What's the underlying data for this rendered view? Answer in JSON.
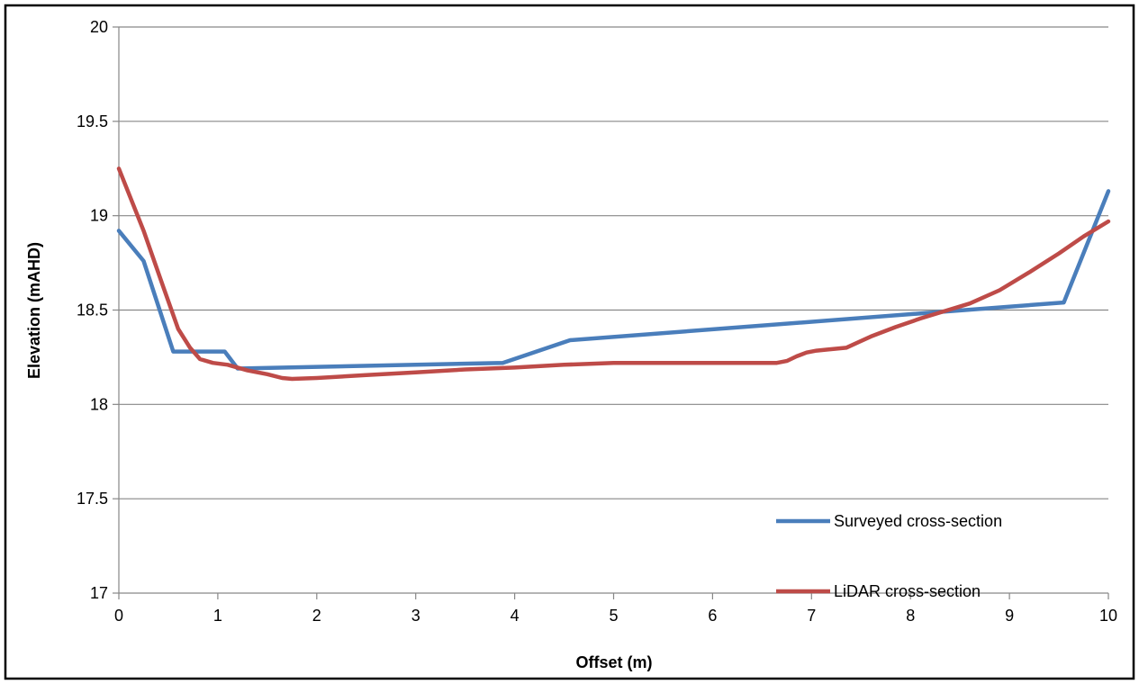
{
  "chart_data": {
    "type": "line",
    "title": "",
    "xlabel": "Offset (m)",
    "ylabel": "Elevation (mAHD)",
    "xlim": [
      0,
      10
    ],
    "ylim": [
      17,
      20
    ],
    "xticks": [
      0,
      1,
      2,
      3,
      4,
      5,
      6,
      7,
      8,
      9,
      10
    ],
    "yticks": [
      17,
      17.5,
      18,
      18.5,
      19,
      19.5,
      20
    ],
    "xtick_labels": [
      "0",
      "1",
      "2",
      "3",
      "4",
      "5",
      "6",
      "7",
      "8",
      "9",
      "10"
    ],
    "ytick_labels": [
      "17",
      "17.5",
      "18",
      "18.5",
      "19",
      "19.5",
      "20"
    ],
    "grid": "horizontal",
    "legend_position": "bottom-right",
    "series": [
      {
        "name": "Surveyed cross-section",
        "color": "#4a7ebb",
        "x": [
          0,
          0.25,
          0.55,
          1.07,
          1.2,
          3.88,
          4.56,
          9.55,
          10
        ],
        "y": [
          18.92,
          18.76,
          18.28,
          18.28,
          18.19,
          18.22,
          18.34,
          18.54,
          19.13
        ]
      },
      {
        "name": "LiDAR cross-section",
        "color": "#be4b48",
        "x": [
          0,
          0.25,
          0.45,
          0.6,
          0.72,
          0.82,
          0.95,
          1.1,
          1.3,
          1.5,
          1.65,
          1.75,
          2.0,
          2.5,
          3.0,
          3.5,
          4.0,
          4.5,
          5.0,
          5.5,
          6.0,
          6.5,
          6.65,
          6.75,
          6.85,
          6.95,
          7.05,
          7.15,
          7.35,
          7.6,
          7.85,
          8.1,
          8.35,
          8.6,
          8.9,
          9.2,
          9.5,
          9.75,
          10
        ],
        "y": [
          19.25,
          18.92,
          18.62,
          18.4,
          18.3,
          18.24,
          18.22,
          18.21,
          18.18,
          18.16,
          18.14,
          18.135,
          18.14,
          18.155,
          18.17,
          18.185,
          18.195,
          18.21,
          18.22,
          18.22,
          18.22,
          18.22,
          18.22,
          18.23,
          18.255,
          18.275,
          18.285,
          18.29,
          18.3,
          18.36,
          18.41,
          18.455,
          18.495,
          18.535,
          18.605,
          18.7,
          18.8,
          18.89,
          18.97
        ]
      }
    ]
  }
}
